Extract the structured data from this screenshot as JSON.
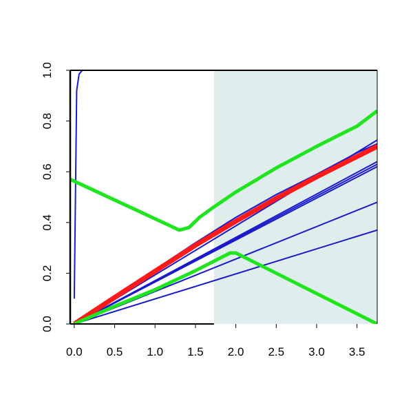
{
  "chart_data": {
    "type": "line",
    "title": "",
    "xlabel": "",
    "ylabel": "",
    "xlim": [
      -0.05,
      3.75
    ],
    "ylim": [
      0.0,
      1.0
    ],
    "x_ticks": [
      0.0,
      0.5,
      1.0,
      1.5,
      2.0,
      2.5,
      3.0,
      3.5
    ],
    "x_tick_labels": [
      "0.0",
      "0.5",
      "1.0",
      "1.5",
      "2.0",
      "2.5",
      "3.0",
      "3.5"
    ],
    "y_ticks": [
      0.0,
      0.2,
      0.4,
      0.6,
      0.8,
      1.0
    ],
    "y_tick_labels": [
      "0.0",
      "0.2",
      "0.4",
      "0.6",
      "0.8",
      "1.0"
    ],
    "grid": false,
    "legend": "none",
    "shaded_region": {
      "x_start": 1.73,
      "x_end": 3.75,
      "color": "#e0eded"
    },
    "series": [
      {
        "color": "#1a1acc",
        "width": 2,
        "x": [
          0.0,
          0.03,
          0.06,
          0.1,
          0.2,
          3.75
        ],
        "y": [
          0.1,
          0.92,
          0.985,
          1.0,
          1.0,
          1.0
        ]
      },
      {
        "color": "#1a1acc",
        "width": 2,
        "x": [
          0.0,
          3.75
        ],
        "y": [
          0.0,
          0.725
        ]
      },
      {
        "color": "#1a1acc",
        "width": 2,
        "x": [
          0.0,
          3.75
        ],
        "y": [
          0.0,
          0.64
        ]
      },
      {
        "color": "#1a1acc",
        "width": 2,
        "x": [
          0.0,
          3.75
        ],
        "y": [
          0.0,
          0.63
        ]
      },
      {
        "color": "#1a1acc",
        "width": 2,
        "x": [
          0.0,
          3.75
        ],
        "y": [
          0.0,
          0.62
        ]
      },
      {
        "color": "#1a1acc",
        "width": 2,
        "x": [
          0.0,
          3.75
        ],
        "y": [
          0.0,
          0.48
        ]
      },
      {
        "color": "#1a1acc",
        "width": 2,
        "x": [
          0.0,
          3.75
        ],
        "y": [
          0.0,
          0.37
        ]
      },
      {
        "color": "#1a1acc",
        "width": 2,
        "x": [
          0.0,
          0.5,
          1.0,
          1.5,
          2.0,
          2.5,
          3.0,
          3.5,
          3.75
        ],
        "y": [
          0.0,
          0.11,
          0.215,
          0.32,
          0.42,
          0.51,
          0.59,
          0.675,
          0.71
        ]
      },
      {
        "color": "#ff1a1a",
        "width": 7,
        "x": [
          0.0,
          0.5,
          1.0,
          1.5,
          2.0,
          2.5,
          3.0,
          3.5,
          3.75
        ],
        "y": [
          0.0,
          0.105,
          0.208,
          0.31,
          0.405,
          0.495,
          0.58,
          0.66,
          0.7
        ]
      },
      {
        "color": "#1fe51f",
        "width": 5,
        "x": [
          -0.05,
          1.3,
          1.42,
          1.55,
          1.7,
          2.0,
          2.5,
          3.0,
          3.5,
          3.75
        ],
        "y": [
          0.57,
          0.37,
          0.38,
          0.42,
          0.455,
          0.52,
          0.615,
          0.7,
          0.78,
          0.84
        ]
      },
      {
        "color": "#1fe51f",
        "width": 5,
        "x": [
          0.0,
          0.5,
          1.0,
          1.5,
          1.93,
          2.0,
          3.75
        ],
        "y": [
          0.0,
          0.07,
          0.135,
          0.21,
          0.28,
          0.28,
          0.0
        ]
      }
    ]
  }
}
